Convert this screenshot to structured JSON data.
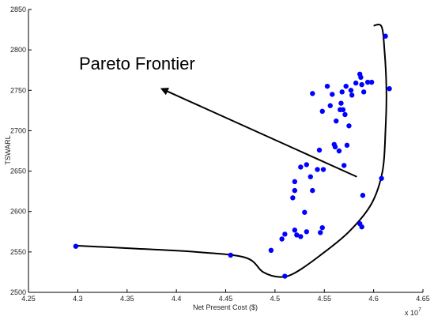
{
  "chart_data": {
    "type": "scatter",
    "xlabel": "Net Present Cost ($)",
    "ylabel": "TSWARL",
    "x_multiplier_label": "x 10",
    "x_multiplier_exponent": "7",
    "xlim": [
      4.25,
      4.65
    ],
    "ylim": [
      2500,
      2850
    ],
    "x_ticks": [
      "4.25",
      "4.3",
      "4.35",
      "4.4",
      "4.45",
      "4.5",
      "4.55",
      "4.6",
      "4.65"
    ],
    "y_ticks": [
      "2500",
      "2550",
      "2600",
      "2650",
      "2700",
      "2750",
      "2800",
      "2850"
    ],
    "grid": false,
    "marker_color": "#0000ff",
    "annotation": {
      "text": "Pareto Frontier",
      "arrow_from": [
        4.583,
        2643
      ],
      "arrow_to": [
        4.383,
        2753
      ]
    },
    "frontier_curve": [
      [
        4.296,
        2558
      ],
      [
        4.36,
        2554
      ],
      [
        4.42,
        2550
      ],
      [
        4.47,
        2543
      ],
      [
        4.488,
        2525
      ],
      [
        4.505,
        2519
      ],
      [
        4.52,
        2524
      ],
      [
        4.545,
        2545
      ],
      [
        4.575,
        2575
      ],
      [
        4.598,
        2610
      ],
      [
        4.609,
        2650
      ],
      [
        4.612,
        2700
      ],
      [
        4.613,
        2750
      ],
      [
        4.611,
        2800
      ],
      [
        4.608,
        2829
      ],
      [
        4.6,
        2830
      ]
    ],
    "points": [
      [
        4.298,
        2557
      ],
      [
        4.455,
        2546
      ],
      [
        4.496,
        2552
      ],
      [
        4.51,
        2520
      ],
      [
        4.507,
        2566
      ],
      [
        4.51,
        2572
      ],
      [
        4.52,
        2577
      ],
      [
        4.522,
        2571
      ],
      [
        4.526,
        2569
      ],
      [
        4.532,
        2575
      ],
      [
        4.546,
        2574
      ],
      [
        4.548,
        2580
      ],
      [
        4.53,
        2599
      ],
      [
        4.518,
        2617
      ],
      [
        4.52,
        2626
      ],
      [
        4.52,
        2637
      ],
      [
        4.526,
        2655
      ],
      [
        4.532,
        2658
      ],
      [
        4.536,
        2643
      ],
      [
        4.538,
        2626
      ],
      [
        4.543,
        2652
      ],
      [
        4.545,
        2676
      ],
      [
        4.549,
        2652
      ],
      [
        4.548,
        2724
      ],
      [
        4.538,
        2746
      ],
      [
        4.553,
        2755
      ],
      [
        4.556,
        2731
      ],
      [
        4.558,
        2745
      ],
      [
        4.56,
        2683
      ],
      [
        4.561,
        2680
      ],
      [
        4.565,
        2675
      ],
      [
        4.562,
        2712
      ],
      [
        4.566,
        2726
      ],
      [
        4.567,
        2734
      ],
      [
        4.568,
        2748
      ],
      [
        4.569,
        2726
      ],
      [
        4.571,
        2720
      ],
      [
        4.572,
        2755
      ],
      [
        4.573,
        2682
      ],
      [
        4.575,
        2706
      ],
      [
        4.577,
        2750
      ],
      [
        4.578,
        2744
      ],
      [
        4.582,
        2759
      ],
      [
        4.586,
        2770
      ],
      [
        4.587,
        2766
      ],
      [
        4.588,
        2757
      ],
      [
        4.59,
        2748
      ],
      [
        4.594,
        2760
      ],
      [
        4.598,
        2760
      ],
      [
        4.589,
        2620
      ],
      [
        4.586,
        2585
      ],
      [
        4.588,
        2581
      ],
      [
        4.57,
        2657
      ],
      [
        4.608,
        2641
      ],
      [
        4.612,
        2817
      ],
      [
        4.616,
        2752
      ]
    ]
  }
}
